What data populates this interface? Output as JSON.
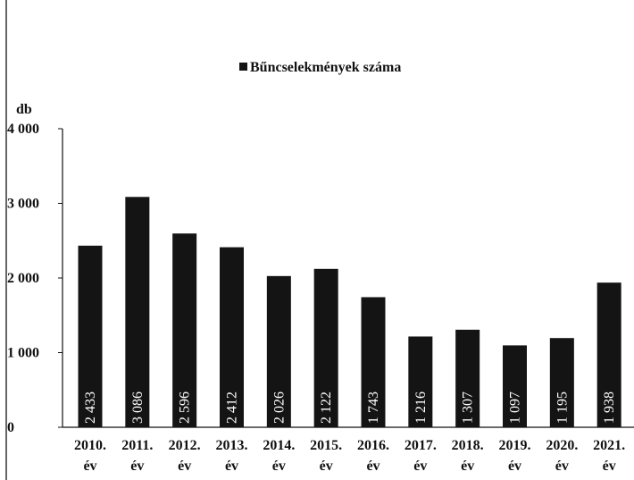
{
  "chart_data": {
    "type": "bar",
    "legend": "Bűncselekmények száma",
    "legend_position": "top-center",
    "ylabel": "db",
    "xlabel": "",
    "ylim": [
      0,
      4000
    ],
    "grid": false,
    "yticks": [
      0,
      1000,
      2000,
      3000,
      4000
    ],
    "ytick_labels": [
      "0",
      "1 000",
      "2 000",
      "3 000",
      "4 000"
    ],
    "categories": [
      [
        "2010.",
        "év"
      ],
      [
        "2011.",
        "év"
      ],
      [
        "2012.",
        "év"
      ],
      [
        "2013.",
        "év"
      ],
      [
        "2014.",
        "év"
      ],
      [
        "2015.",
        "év"
      ],
      [
        "2016.",
        "év"
      ],
      [
        "2017.",
        "év"
      ],
      [
        "2018.",
        "év"
      ],
      [
        "2019.",
        "év"
      ],
      [
        "2020.",
        "év"
      ],
      [
        "2021.",
        "év"
      ]
    ],
    "series": [
      {
        "name": "Bűncselekmények száma",
        "values": [
          2433,
          3086,
          2596,
          2412,
          2026,
          2122,
          1743,
          1216,
          1307,
          1097,
          1195,
          1938
        ],
        "labels": [
          "2 433",
          "3 086",
          "2 596",
          "2 412",
          "2 026",
          "2 122",
          "1 743",
          "1 216",
          "1 307",
          "1 097",
          "1 195",
          "1 938"
        ]
      }
    ],
    "colors": {
      "bar": "#141414",
      "axis": "#111111",
      "data_label": "#ffffff"
    }
  }
}
